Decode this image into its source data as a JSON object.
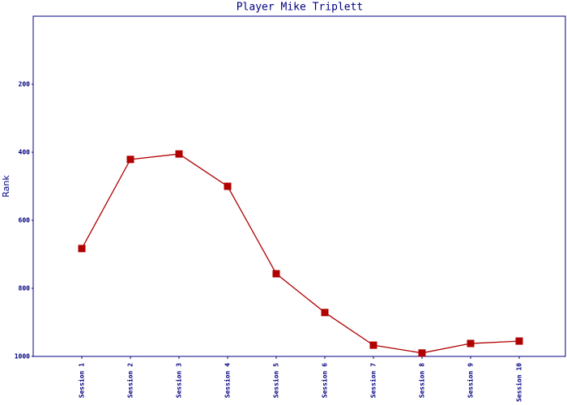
{
  "chart_data": {
    "type": "line",
    "title": "Player Mike Triplett",
    "y_label": "Rank",
    "categories": [
      "Session 1",
      "Session 2",
      "Session 3",
      "Session 4",
      "Session 5",
      "Session 6",
      "Session 7",
      "Session 8",
      "Session 9",
      "Session 10"
    ],
    "series": [
      {
        "name": "Rank",
        "color": "#b00000",
        "values": [
          683,
          421,
          405,
          500,
          757,
          871,
          967,
          990,
          962,
          955
        ]
      }
    ],
    "ylim": [
      1000,
      0
    ],
    "yticks": [
      200,
      400,
      600,
      800,
      1000
    ],
    "grid": false
  }
}
